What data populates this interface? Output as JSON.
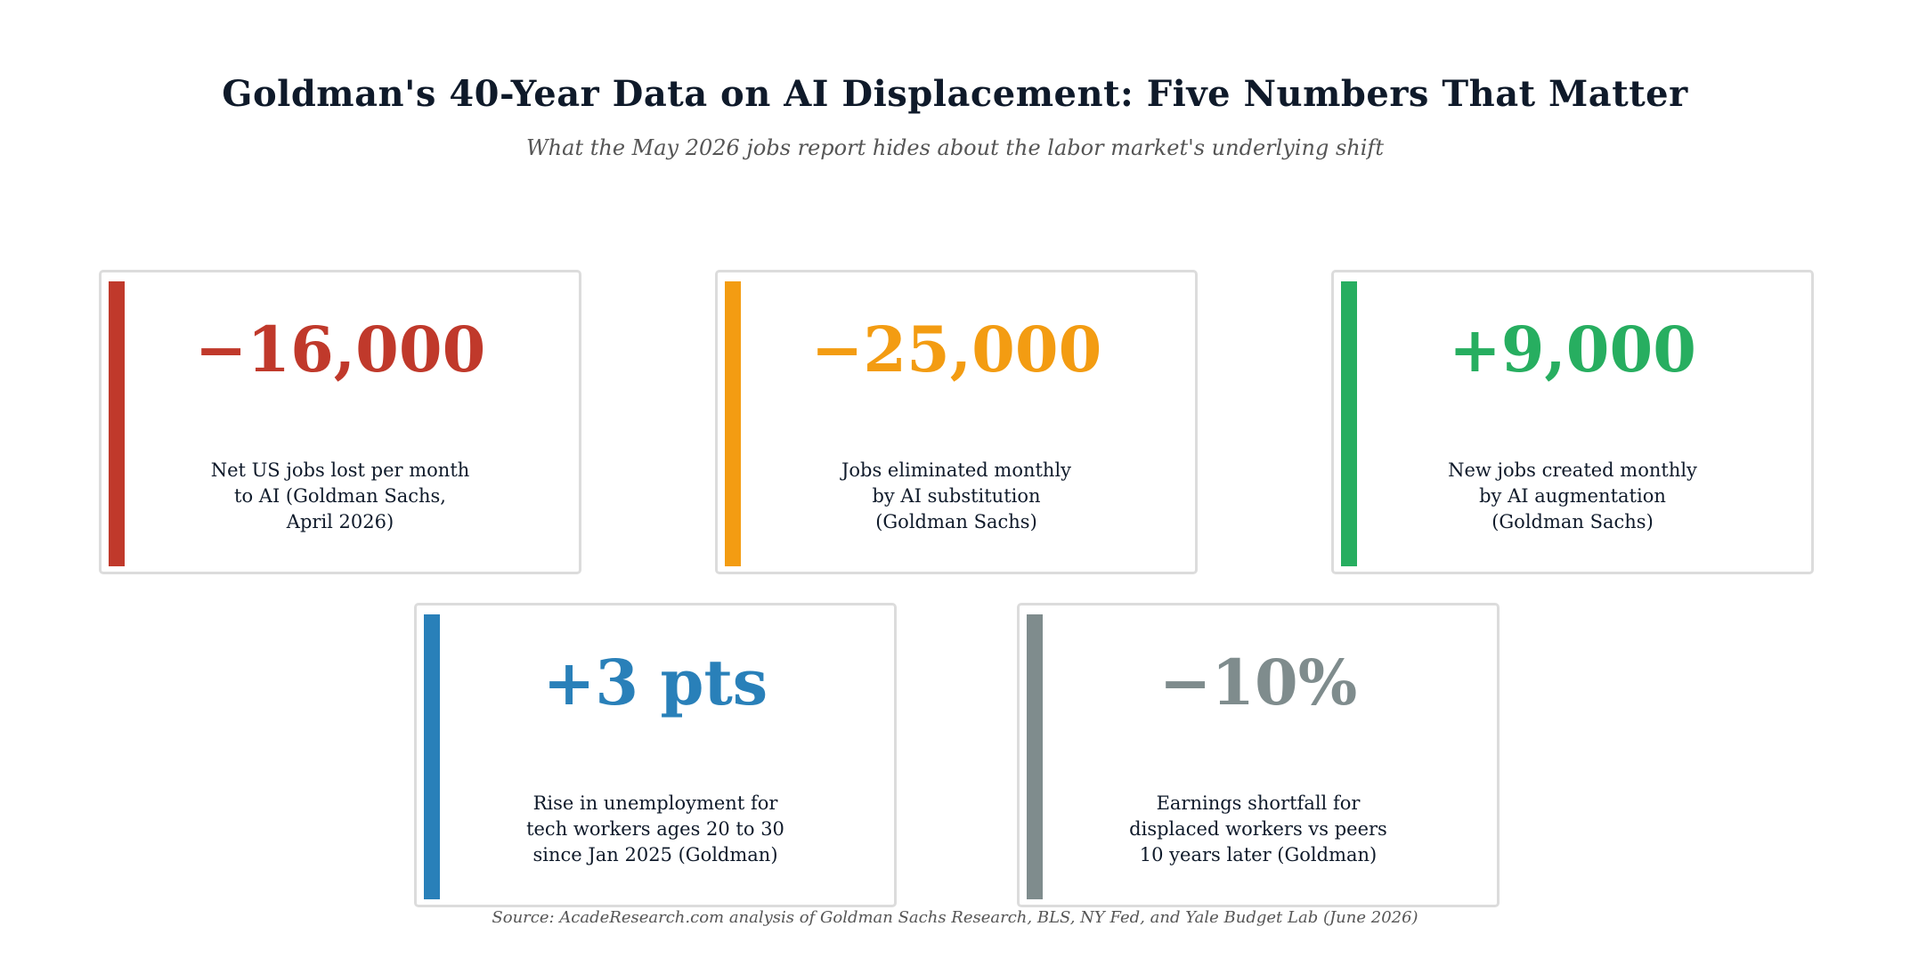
{
  "header": {
    "title": "Goldman's 40-Year Data on AI Displacement: Five Numbers That Matter",
    "subtitle": "What the May 2026 jobs report hides about the labor market's underlying shift"
  },
  "cards": [
    {
      "value": "−16,000",
      "description": "Net US jobs lost per month\nto AI (Goldman Sachs,\nApril 2026)",
      "color": "#c0392b"
    },
    {
      "value": "−25,000",
      "description": "Jobs eliminated monthly\nby AI substitution\n(Goldman Sachs)",
      "color": "#f39c12"
    },
    {
      "value": "+9,000",
      "description": "New jobs created monthly\nby AI augmentation\n(Goldman Sachs)",
      "color": "#27ae60"
    },
    {
      "value": "+3 pts",
      "description": "Rise in unemployment for\ntech workers ages 20 to 30\nsince Jan 2025 (Goldman)",
      "color": "#2980b9"
    },
    {
      "value": "−10%",
      "description": "Earnings shortfall for\ndisplaced workers vs peers\n10 years later (Goldman)",
      "color": "#7f8c8d"
    }
  ],
  "footer": {
    "source": "Source: AcadeResearch.com analysis of Goldman Sachs Research, BLS, NY Fed, and Yale Budget Lab (June 2026)"
  }
}
